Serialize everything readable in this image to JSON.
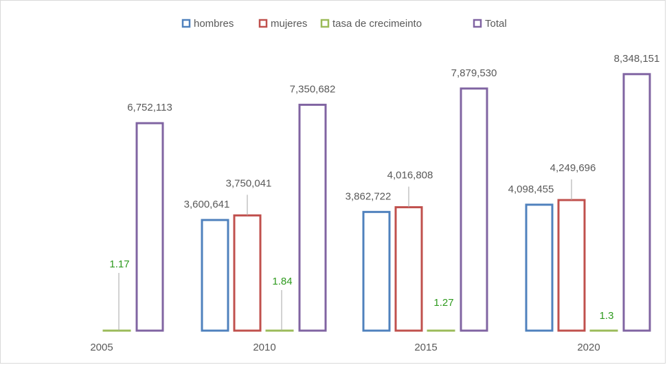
{
  "chart_data": {
    "type": "bar",
    "categories": [
      "2005",
      "2010",
      "2015",
      "2020"
    ],
    "series": [
      {
        "name": "hombres",
        "color": "#4f81bd",
        "values": [
          null,
          3600641,
          3862722,
          4098455
        ],
        "value_labels": [
          null,
          "3,600,641",
          "3,862,722",
          "4,098,455"
        ]
      },
      {
        "name": "mujeres",
        "color": "#c0504d",
        "values": [
          null,
          3750041,
          4016808,
          4249696
        ],
        "value_labels": [
          null,
          "3,750,041",
          "4,016,808",
          "4,249,696"
        ]
      },
      {
        "name": "tasa de crecimeinto",
        "color": "#9bbb59",
        "values": [
          1.17,
          1.84,
          1.27,
          1.3
        ]
      },
      {
        "name": "Total",
        "color": "#8064a2",
        "values": [
          6752113,
          7350682,
          7879530,
          8348151
        ],
        "value_labels": [
          "6,752,113",
          "7,350,682",
          "7,879,530",
          "8,348,151"
        ]
      }
    ],
    "ylim": [
      0,
      10000000
    ],
    "legend": "top"
  }
}
